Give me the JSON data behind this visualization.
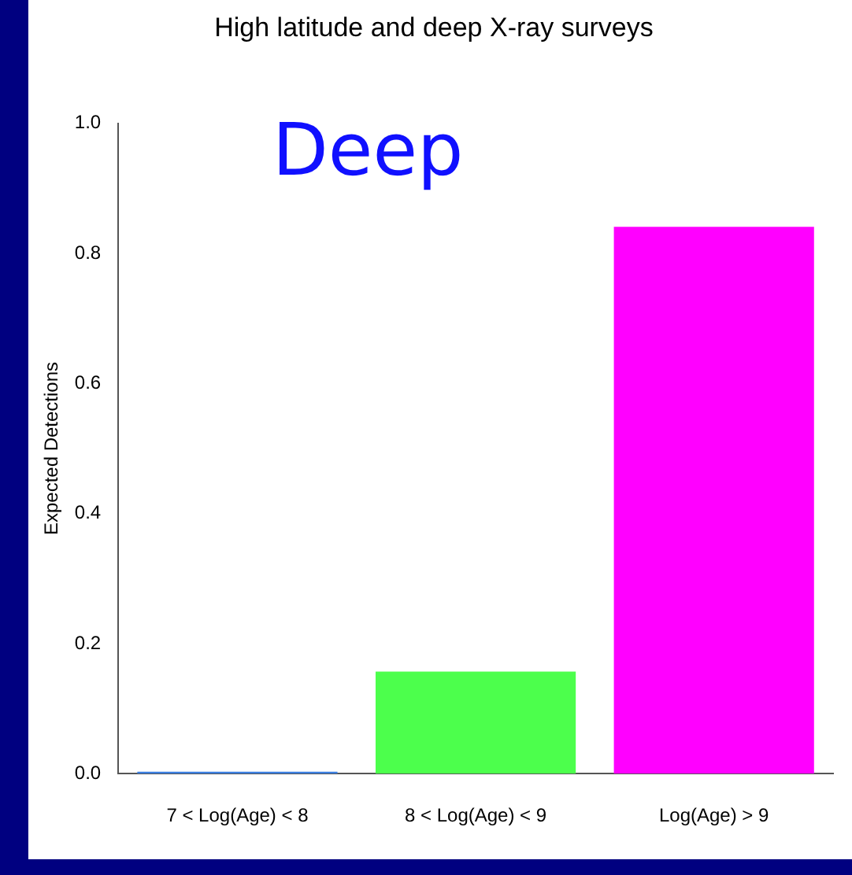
{
  "chart_data": {
    "type": "bar",
    "title": "High latitude and deep X-ray surveys",
    "ylabel": "Expected Detections",
    "categories": [
      "7 < Log(Age) < 8",
      "8 < Log(Age) < 9",
      "Log(Age) > 9"
    ],
    "values": [
      0.003,
      0.157,
      0.841
    ],
    "colors": [
      "#3a7ee0",
      "#4cff4c",
      "#ff00ff"
    ],
    "ylim": [
      0,
      1
    ],
    "yticks": [
      {
        "value": 0,
        "label": "0.0"
      },
      {
        "value": 0.2,
        "label": "0.2"
      },
      {
        "value": 0.4,
        "label": "0.4"
      },
      {
        "value": 0.6,
        "label": "0.6"
      },
      {
        "value": 0.8,
        "label": "0.8"
      },
      {
        "value": 1,
        "label": "1.0"
      }
    ],
    "annotations": [
      "Deep"
    ],
    "grid": false,
    "legend": false
  }
}
